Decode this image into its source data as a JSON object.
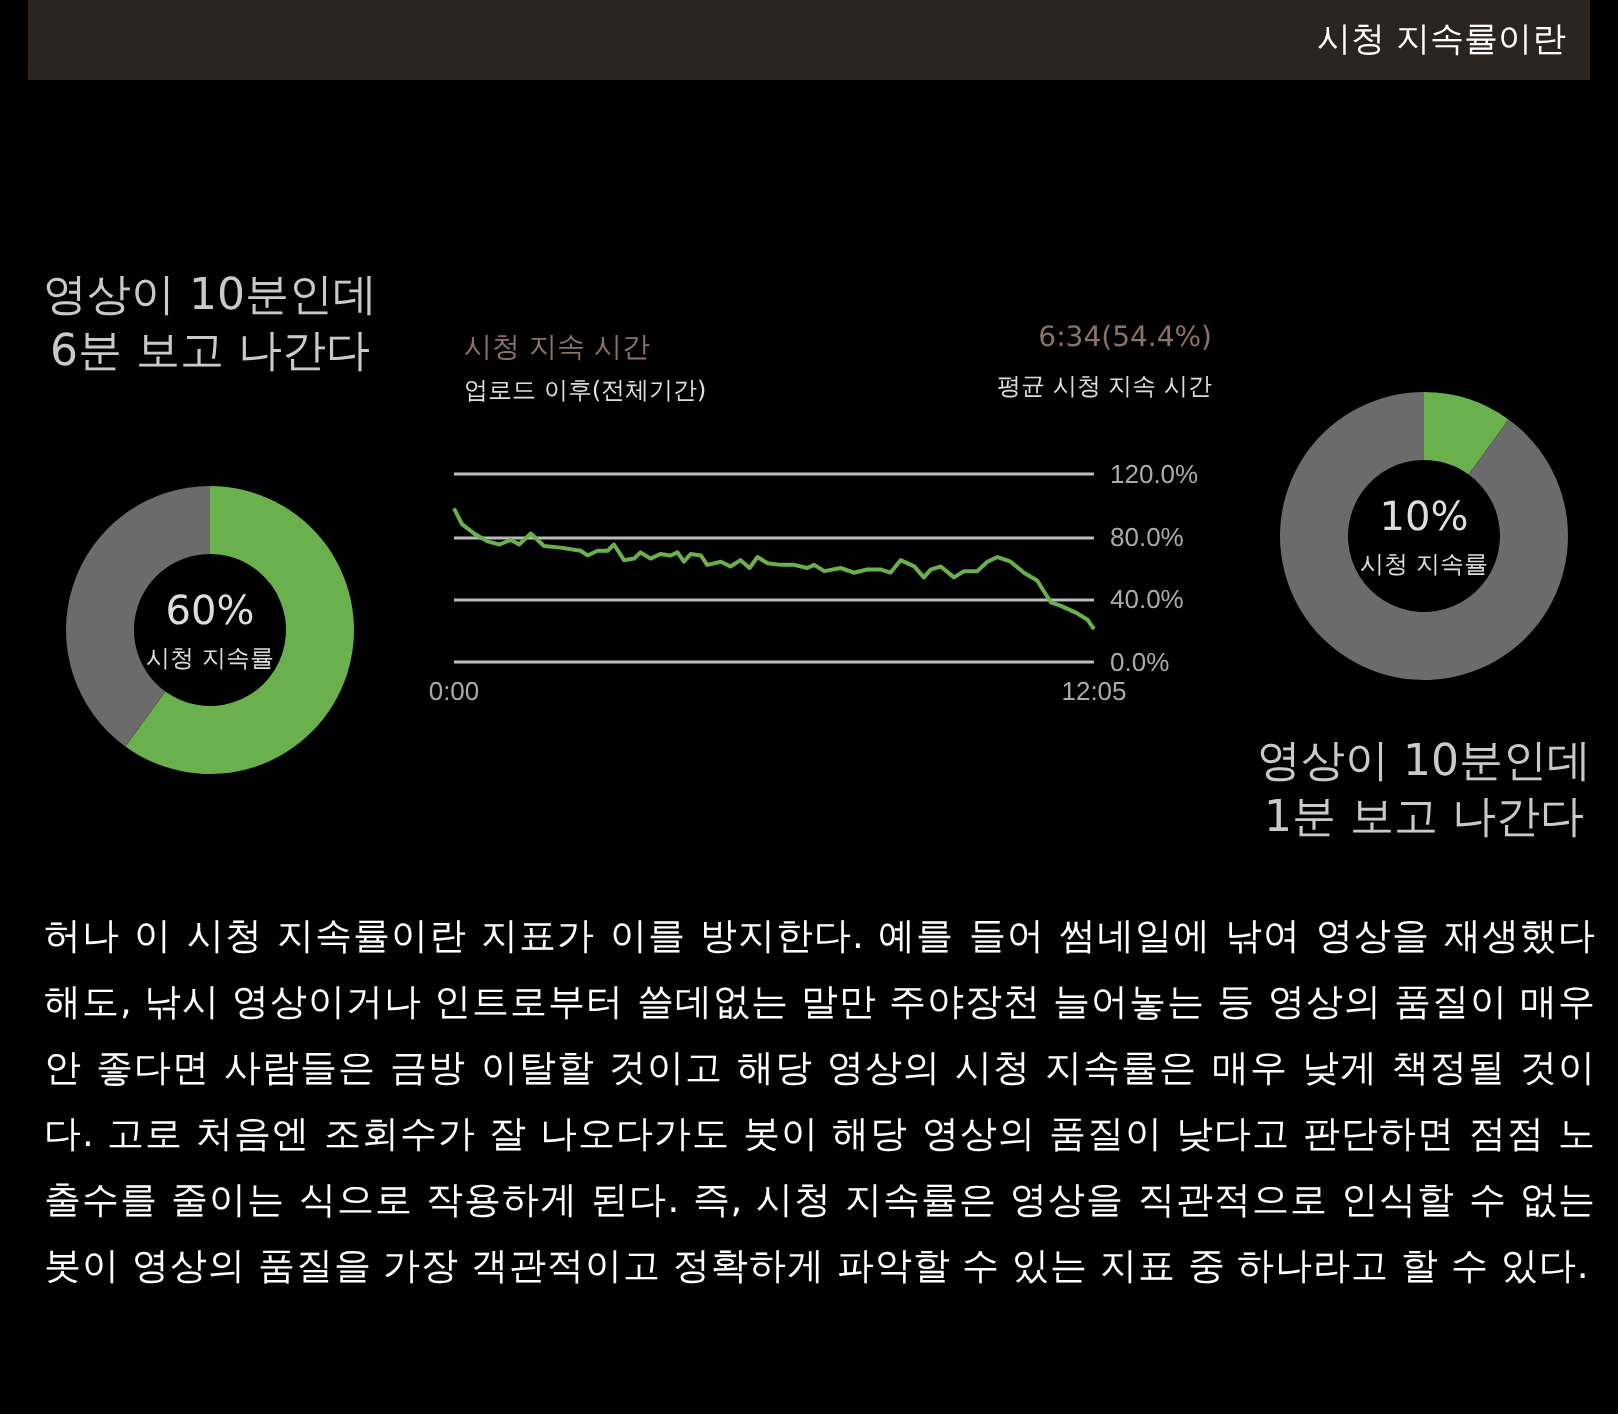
{
  "chart_data": [
    {
      "type": "other",
      "title": "시청 지속률이란"
    },
    {
      "type": "donut",
      "title": "영상이 10분인데\n6분 보고 나간다",
      "categories": [
        null,
        null
      ],
      "values": [
        60,
        40
      ],
      "colors": [
        "#6ab04c",
        "#6b6b6b"
      ],
      "value_labels": [
        "60%",
        null
      ],
      "annotations": [
        "시청 지속률"
      ]
    },
    {
      "type": "line",
      "title": "시청 지속 시간",
      "subtitle": "업로드 이후(전체기간)",
      "annotations": [
        "6:34(54.4%)",
        "평균 시청 지속 시간"
      ],
      "xlim": [
        0,
        12.083
      ],
      "xticks": [
        {
          "value": 0,
          "label": "0:00"
        },
        {
          "value": 12.083,
          "label": "12:05"
        }
      ],
      "ylim": [
        0,
        120
      ],
      "yticks": [
        {
          "value": 0,
          "label": "0.0%"
        },
        {
          "value": 40,
          "label": "40.0%"
        },
        {
          "value": 80,
          "label": "80.0%"
        },
        {
          "value": 120,
          "label": "120.0%"
        }
      ],
      "grid": "y",
      "marker": "none",
      "line_style": "solid",
      "series": [
        {
          "color": "#6ab04c",
          "x": [
            0,
            0.15,
            0.38,
            0.63,
            0.86,
            1.07,
            1.23,
            1.45,
            1.7,
            2.01,
            2.39,
            2.52,
            2.71,
            2.9,
            3.02,
            3.21,
            3.4,
            3.52,
            3.71,
            3.9,
            4.09,
            4.22,
            4.34,
            4.47,
            4.66,
            4.78,
            5.04,
            5.22,
            5.41,
            5.58,
            5.73,
            5.92,
            6.17,
            6.42,
            6.67,
            6.8,
            6.99,
            7.3,
            7.55,
            7.8,
            8.06,
            8.24,
            8.43,
            8.69,
            8.87,
            9,
            9.19,
            9.44,
            9.63,
            9.88,
            10.07,
            10.26,
            10.51,
            10.76,
            11.01,
            11.27,
            11.45,
            11.77,
            11.96,
            12.083
          ],
          "values": [
            98,
            88,
            82,
            77,
            75,
            78,
            75,
            82,
            74,
            73,
            71,
            68,
            71,
            71,
            75,
            65,
            66,
            70,
            66,
            69,
            68,
            70,
            64,
            69,
            68,
            62,
            64,
            61,
            65,
            60,
            67,
            63,
            62,
            62,
            60,
            62,
            58,
            60,
            57,
            59,
            59,
            57,
            65,
            61,
            54,
            59,
            61,
            54,
            58,
            58,
            64,
            67,
            64,
            57,
            52,
            38,
            36,
            31,
            27,
            21
          ]
        }
      ]
    },
    {
      "type": "donut",
      "title": "영상이 10분인데\n1분 보고 나간다",
      "categories": [
        null,
        null
      ],
      "values": [
        10,
        90
      ],
      "colors": [
        "#6ab04c",
        "#6b6b6b"
      ],
      "value_labels": [
        "10%",
        null
      ],
      "annotations": [
        "시청 지속률"
      ]
    },
    {
      "type": "other",
      "annotations": [
        "허나 이 시청 지속률이란 지표가 이를 방지한다. 예를 들어 썸네일에 낚여 영상을 재생했다 해도, 낚시 영상이거나 인트로부터 쓸데없는 말만 주야장천 늘어놓는 등 영상의 품질이 매우 안 좋다면 사람들은 금방 이탈할 것이고 해당 영상의 시청 지속률은 매우 낮게 책정될 것이다. 고로 처음엔 조회수가 잘 나오다가도 봇이 해당 영상의 품질이 낮다고 판단하면 점점 노출수를 줄이는 식으로 작용하게 된다. 즉, 시청 지속률은 영상을 직관적으로 인식할 수 없는 봇이 영상의 품질을 가장 객관적이고 정확하게 파악할 수 있는 지표 중 하나라고 할 수 있다."
      ]
    }
  ]
}
